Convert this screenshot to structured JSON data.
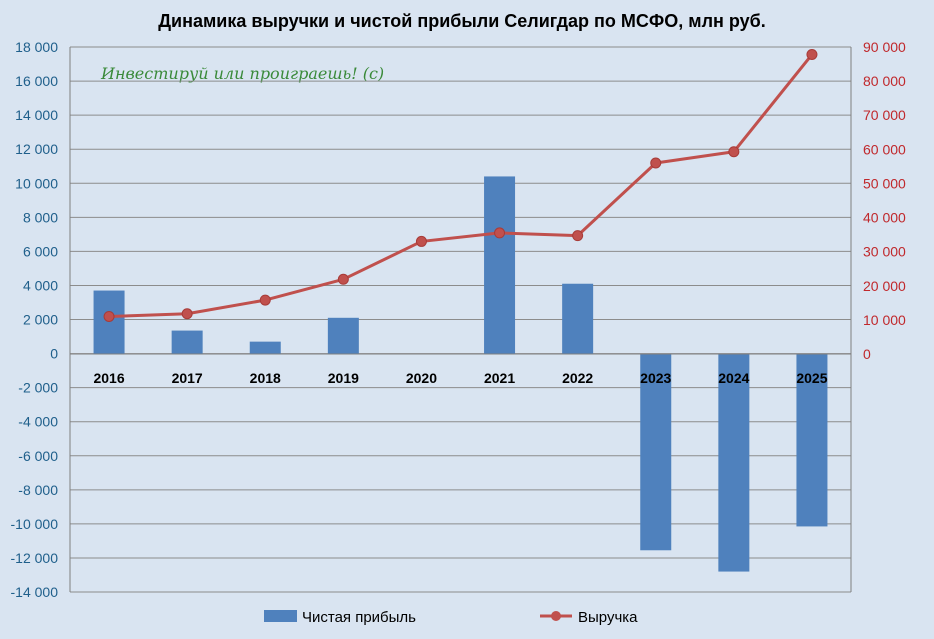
{
  "chart_data": {
    "type": "bar+line",
    "title": "Динамика выручки и чистой прибыли Селигдар по МСФО, млн руб.",
    "watermark": "Инвестируй или проиграешь! (с)",
    "categories": [
      "2016",
      "2017",
      "2018",
      "2019",
      "2020",
      "2021",
      "2022",
      "2023",
      "2024",
      "2025"
    ],
    "series": [
      {
        "name": "Чистая прибыль",
        "type": "bar",
        "axis": "left",
        "color": "#4f81bd",
        "values": [
          3700,
          1350,
          700,
          2100,
          0,
          10400,
          4100,
          -11550,
          -12800,
          -10150
        ]
      },
      {
        "name": "Выручка",
        "type": "line",
        "axis": "right",
        "color": "#c0504d",
        "values": [
          11000,
          11800,
          15800,
          21900,
          33000,
          35500,
          34700,
          56000,
          59300,
          87800
        ]
      }
    ],
    "y_left": {
      "ylim": [
        -14000,
        18000
      ],
      "ticks": [
        "18 000",
        "16 000",
        "14 000",
        "12 000",
        "10 000",
        "8 000",
        "6 000",
        "4 000",
        "2 000",
        "0",
        "-2 000",
        "-4 000",
        "-6 000",
        "-8 000",
        "-10 000",
        "-12 000",
        "-14 000"
      ]
    },
    "y_right": {
      "ylim": [
        0,
        90000
      ],
      "ticks": [
        "90 000",
        "80 000",
        "70 000",
        "60 000",
        "50 000",
        "40 000",
        "30 000",
        "20 000",
        "10 000",
        "0"
      ]
    },
    "grid": true,
    "legend_position": "bottom"
  }
}
